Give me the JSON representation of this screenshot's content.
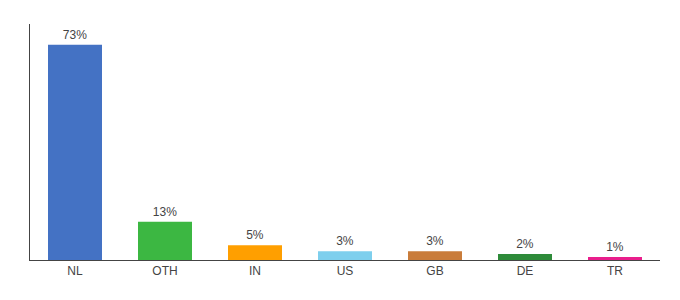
{
  "chart_data": {
    "type": "bar",
    "categories": [
      "NL",
      "OTH",
      "IN",
      "US",
      "GB",
      "DE",
      "TR"
    ],
    "values": [
      73,
      13,
      5,
      3,
      3,
      2,
      1
    ],
    "value_labels": [
      "73%",
      "13%",
      "5%",
      "3%",
      "3%",
      "2%",
      "1%"
    ],
    "colors": [
      "#4472c4",
      "#3cb742",
      "#ff9f00",
      "#7ecfed",
      "#c97c3a",
      "#2e8b3a",
      "#e91e8c"
    ],
    "ylim": [
      0,
      80
    ],
    "grid": false,
    "data_labels": true,
    "tick_labels": "x"
  }
}
